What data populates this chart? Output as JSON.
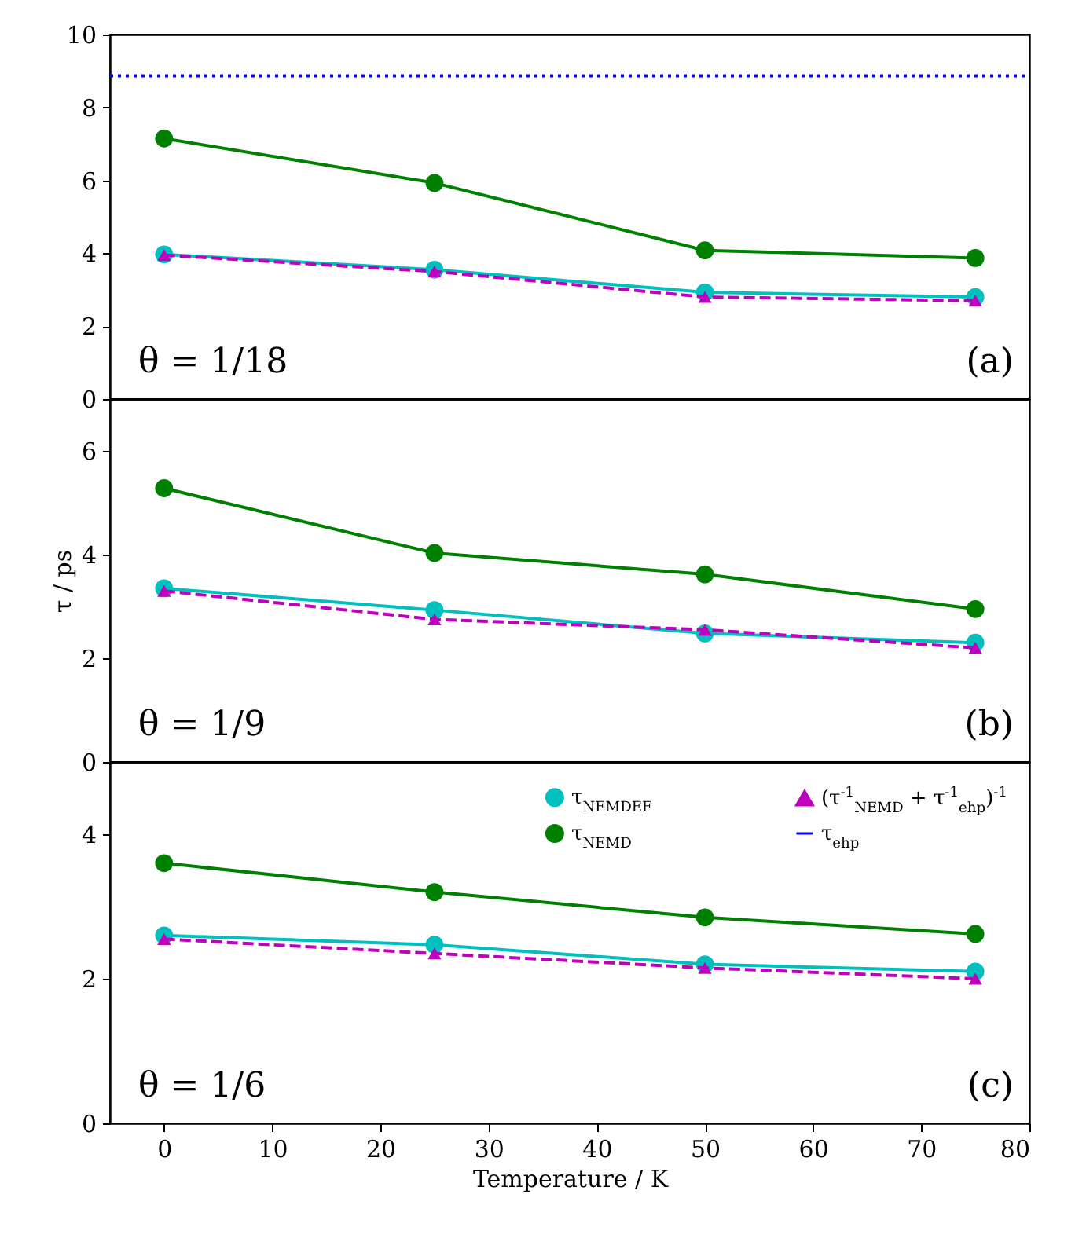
{
  "chart_data": [
    {
      "type": "line",
      "x": [
        0,
        25,
        50,
        75
      ],
      "xlim": [
        -5,
        80
      ],
      "xticks": [
        0,
        10,
        20,
        30,
        40,
        50,
        60,
        70,
        80
      ],
      "ylim": [
        0,
        10
      ],
      "yticks": [
        0,
        2,
        4,
        6,
        8,
        10
      ],
      "tick_labels": "y",
      "marker": "circle",
      "grid": false,
      "annotations": [
        "θ = 1/18",
        "(a)"
      ],
      "series": [
        {
          "color": "#00bfbf",
          "values": [
            3.97,
            3.55,
            2.93,
            2.8
          ]
        },
        {
          "name": "τ$_{ehp}$",
          "color": "#0000ff",
          "x": [
            -5,
            80
          ],
          "values": [
            8.87,
            8.87
          ],
          "line_style": "dotted",
          "marker": "none"
        },
        {
          "color": "#008000",
          "values": [
            7.15,
            5.93,
            4.08,
            3.87
          ]
        },
        {
          "color": "#bf00bf",
          "values": [
            3.95,
            3.5,
            2.8,
            2.7
          ],
          "line_style": "dashed",
          "marker": "triangle"
        }
      ]
    },
    {
      "type": "line",
      "x": [
        0,
        25,
        50,
        75
      ],
      "xlim": [
        -5,
        80
      ],
      "xticks": [
        0,
        10,
        20,
        30,
        40,
        50,
        60,
        70,
        80
      ],
      "ylim": [
        0,
        7
      ],
      "yticks": [
        0,
        2,
        4,
        6
      ],
      "tick_labels": "y",
      "marker": "circle",
      "grid": false,
      "ylabel": "τ / ps",
      "annotations": [
        "θ = 1/9",
        "(b)"
      ],
      "series": [
        {
          "color": "#00bfbf",
          "values": [
            3.35,
            2.93,
            2.48,
            2.3
          ]
        },
        {
          "color": "#008000",
          "values": [
            5.28,
            4.03,
            3.62,
            2.95
          ]
        },
        {
          "color": "#bf00bf",
          "values": [
            3.3,
            2.75,
            2.55,
            2.2
          ],
          "line_style": "dashed",
          "marker": "triangle"
        }
      ]
    },
    {
      "type": "line",
      "x": [
        0,
        25,
        50,
        75
      ],
      "xlim": [
        -5,
        80
      ],
      "xticks": [
        0,
        10,
        20,
        30,
        40,
        50,
        60,
        70,
        80
      ],
      "ylim": [
        0,
        5
      ],
      "yticks": [
        0,
        2,
        4
      ],
      "marker": "circle",
      "grid": false,
      "xlabel": "Temperature / K",
      "legend": "top right",
      "annotations": [
        "θ = 1/6",
        "(c)"
      ],
      "series": [
        {
          "name": "τ$_{NEMDEF}$",
          "color": "#00bfbf",
          "values": [
            2.6,
            2.47,
            2.2,
            2.1
          ]
        },
        {
          "name": "τ$_{NEMD}$",
          "color": "#008000",
          "values": [
            3.6,
            3.2,
            2.85,
            2.62
          ]
        },
        {
          "name": "(τ$^{-1}$$_{NEMD}$ + τ$^{-1}$$_{ehp}$)$^{-1}$",
          "color": "#bf00bf",
          "values": [
            2.55,
            2.35,
            2.15,
            2.0
          ],
          "line_style": "dashed",
          "marker": "triangle"
        }
      ]
    }
  ]
}
